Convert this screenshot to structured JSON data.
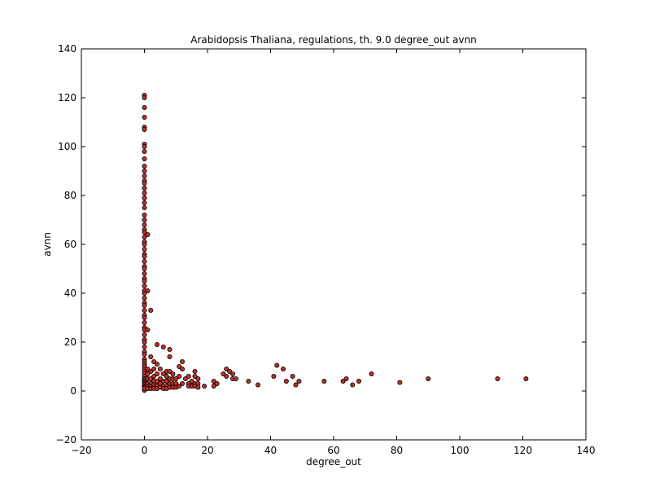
{
  "chart_data": {
    "type": "scatter",
    "title": "Arabidopsis Thaliana, regulations, th. 9.0 degree_out avnn",
    "xlabel": "degree_out",
    "ylabel": "avnn",
    "xlim": [
      -20,
      140
    ],
    "ylim": [
      -20,
      140
    ],
    "xticks": [
      "−20",
      "0",
      "20",
      "40",
      "60",
      "80",
      "100",
      "120",
      "140"
    ],
    "yticks": [
      "−20",
      "0",
      "20",
      "40",
      "60",
      "80",
      "100",
      "120",
      "140"
    ],
    "grid": false,
    "legend": "none",
    "marker_color": "#c0302a",
    "marker_edge_color": "#000000",
    "series": [
      {
        "x": [
          0,
          0,
          0,
          0,
          0,
          0,
          0,
          0,
          0,
          0,
          0,
          0,
          0,
          0,
          0,
          0,
          0,
          0,
          0,
          0,
          0,
          0,
          0,
          0,
          0,
          0,
          0,
          0,
          0,
          0,
          0,
          0,
          0,
          0,
          0,
          0,
          0,
          0,
          0,
          0,
          0,
          0,
          0,
          0,
          0,
          0,
          0,
          0,
          0,
          0,
          0,
          0,
          0,
          0,
          0,
          0,
          0,
          0,
          0,
          0,
          0,
          0,
          0,
          0,
          0,
          0,
          0,
          0,
          0,
          0,
          0,
          0,
          0,
          0,
          0,
          0,
          0,
          0,
          0,
          0,
          0,
          1,
          1,
          1,
          1,
          1,
          1,
          1,
          1,
          1,
          2,
          2,
          2,
          2,
          2,
          2,
          2,
          3,
          3,
          3,
          3,
          3,
          3,
          3,
          4,
          4,
          4,
          4,
          4,
          4,
          5,
          5,
          5,
          5,
          6,
          6,
          6,
          6,
          6,
          7,
          7,
          7,
          7,
          7,
          8,
          8,
          8,
          8,
          8,
          8,
          9,
          9,
          9,
          9,
          10,
          10,
          10,
          11,
          11,
          11,
          12,
          12,
          12,
          13,
          14,
          14,
          14,
          15,
          15,
          16,
          16,
          16,
          16,
          17,
          17,
          17,
          19,
          22,
          22,
          23,
          25,
          26,
          26,
          27,
          28,
          28,
          29,
          33,
          36,
          41,
          42,
          44,
          45,
          47,
          48,
          49,
          57,
          63,
          64,
          66,
          68,
          72,
          81,
          90,
          112,
          121
        ],
        "y": [
          121,
          120,
          116,
          112,
          108,
          107,
          101,
          100,
          98,
          95,
          92,
          90,
          88,
          86,
          85,
          83,
          81,
          79,
          77,
          75,
          72,
          70,
          68,
          66,
          65,
          63,
          61,
          60,
          58,
          56,
          55,
          53,
          51,
          50,
          48,
          46,
          45,
          43,
          41,
          40,
          38,
          36,
          35,
          33,
          31,
          30,
          28,
          26,
          25,
          23,
          21,
          20,
          18,
          16,
          15,
          13,
          12,
          11,
          10,
          9,
          8,
          7,
          6,
          5,
          4.5,
          4,
          3.5,
          3,
          2.5,
          2,
          1.5,
          1.2,
          1,
          0.9,
          0.8,
          0.7,
          0.6,
          0.5,
          0.4,
          0.3,
          1.1,
          64,
          41,
          25,
          9,
          7,
          5,
          3,
          2,
          1,
          33,
          14,
          8,
          5,
          3,
          2,
          1,
          12,
          9,
          6,
          4,
          2.5,
          1.5,
          1,
          19,
          11,
          7,
          4,
          2,
          1,
          9,
          5,
          3,
          1.5,
          18,
          7,
          4,
          2,
          1,
          8,
          6,
          4,
          2,
          1,
          17,
          14,
          8,
          5,
          3,
          1.5,
          7,
          5,
          3,
          1.5,
          5,
          3,
          1.5,
          10,
          6,
          2,
          12,
          9,
          3,
          5,
          6,
          3,
          2,
          4,
          2,
          8,
          6,
          3,
          2,
          5,
          3,
          1.5,
          2,
          4,
          2,
          3,
          7,
          9,
          6,
          8,
          5,
          7,
          5,
          4,
          2.5,
          6,
          10.5,
          9,
          4,
          6,
          2.5,
          4,
          4,
          4,
          5,
          2.5,
          4,
          7,
          3.5,
          5,
          5,
          5
        ]
      }
    ]
  }
}
